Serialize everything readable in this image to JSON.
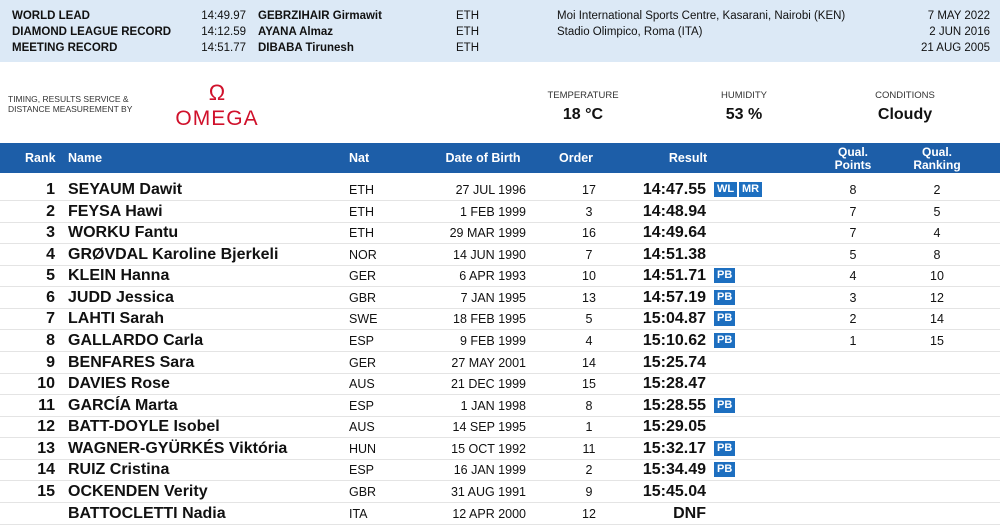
{
  "records": [
    {
      "label": "WORLD LEAD",
      "time": "14:49.97",
      "name": "GEBRZIHAIR Girmawit",
      "nat": "ETH",
      "venue": "Moi International Sports Centre, Kasarani, Nairobi (KEN)",
      "date": "7 MAY 2022"
    },
    {
      "label": "DIAMOND LEAGUE RECORD",
      "time": "14:12.59",
      "name": "AYANA Almaz",
      "nat": "ETH",
      "venue": "Stadio Olimpico, Roma (ITA)",
      "date": "2 JUN 2016"
    },
    {
      "label": "MEETING RECORD",
      "time": "14:51.77",
      "name": "DIBABA Tirunesh",
      "nat": "ETH",
      "date": "21 AUG 2005"
    }
  ],
  "timing": {
    "credit_lines": [
      "TIMING, RESULTS SERVICE &",
      "DISTANCE MEASUREMENT BY"
    ],
    "logo_symbol": "Ω",
    "logo_text": "OMEGA"
  },
  "weather": [
    {
      "label": "TEMPERATURE",
      "value": "18 °C"
    },
    {
      "label": "HUMIDITY",
      "value": "53 %"
    },
    {
      "label": "CONDITIONS",
      "value": "Cloudy"
    }
  ],
  "table": {
    "headers": {
      "rank": "Rank",
      "name": "Name",
      "nat": "Nat",
      "dob": "Date of Birth",
      "order": "Order",
      "result": "Result",
      "qual_points": [
        "Qual.",
        "Points"
      ],
      "qual_ranking": [
        "Qual.",
        "Ranking"
      ]
    },
    "rows": [
      {
        "rank": "1",
        "name": "SEYAUM Dawit",
        "nat": "ETH",
        "dob": "27 JUL 1996",
        "order": "17",
        "result": "14:47.55",
        "badges": [
          "WL",
          "MR"
        ],
        "qual_points": "8",
        "qual_ranking": "2"
      },
      {
        "rank": "2",
        "name": "FEYSA Hawi",
        "nat": "ETH",
        "dob": "1 FEB 1999",
        "order": "3",
        "result": "14:48.94",
        "qual_points": "7",
        "qual_ranking": "5"
      },
      {
        "rank": "3",
        "name": "WORKU Fantu",
        "nat": "ETH",
        "dob": "29 MAR 1999",
        "order": "16",
        "result": "14:49.64",
        "qual_points": "7",
        "qual_ranking": "4"
      },
      {
        "rank": "4",
        "name": "GRØVDAL Karoline Bjerkeli",
        "nat": "NOR",
        "dob": "14 JUN 1990",
        "order": "7",
        "result": "14:51.38",
        "qual_points": "5",
        "qual_ranking": "8"
      },
      {
        "rank": "5",
        "name": "KLEIN Hanna",
        "nat": "GER",
        "dob": "6 APR 1993",
        "order": "10",
        "result": "14:51.71",
        "badges": [
          "PB"
        ],
        "qual_points": "4",
        "qual_ranking": "10"
      },
      {
        "rank": "6",
        "name": "JUDD Jessica",
        "nat": "GBR",
        "dob": "7 JAN 1995",
        "order": "13",
        "result": "14:57.19",
        "badges": [
          "PB"
        ],
        "qual_points": "3",
        "qual_ranking": "12"
      },
      {
        "rank": "7",
        "name": "LAHTI Sarah",
        "nat": "SWE",
        "dob": "18 FEB 1995",
        "order": "5",
        "result": "15:04.87",
        "badges": [
          "PB"
        ],
        "qual_points": "2",
        "qual_ranking": "14"
      },
      {
        "rank": "8",
        "name": "GALLARDO Carla",
        "nat": "ESP",
        "dob": "9 FEB 1999",
        "order": "4",
        "result": "15:10.62",
        "badges": [
          "PB"
        ],
        "qual_points": "1",
        "qual_ranking": "15"
      },
      {
        "rank": "9",
        "name": "BENFARES Sara",
        "nat": "GER",
        "dob": "27 MAY 2001",
        "order": "14",
        "result": "15:25.74"
      },
      {
        "rank": "10",
        "name": "DAVIES Rose",
        "nat": "AUS",
        "dob": "21 DEC 1999",
        "order": "15",
        "result": "15:28.47"
      },
      {
        "rank": "11",
        "name": "GARCÍA Marta",
        "nat": "ESP",
        "dob": "1 JAN 1998",
        "order": "8",
        "result": "15:28.55",
        "badges": [
          "PB"
        ]
      },
      {
        "rank": "12",
        "name": "BATT-DOYLE Isobel",
        "nat": "AUS",
        "dob": "14 SEP 1995",
        "order": "1",
        "result": "15:29.05"
      },
      {
        "rank": "13",
        "name": "WAGNER-GYÜRKÉS Viktória",
        "nat": "HUN",
        "dob": "15 OCT 1992",
        "order": "11",
        "result": "15:32.17",
        "badges": [
          "PB"
        ]
      },
      {
        "rank": "14",
        "name": "RUIZ Cristina",
        "nat": "ESP",
        "dob": "16 JAN 1999",
        "order": "2",
        "result": "15:34.49",
        "badges": [
          "PB"
        ]
      },
      {
        "rank": "15",
        "name": "OCKENDEN Verity",
        "nat": "GBR",
        "dob": "31 AUG 1991",
        "order": "9",
        "result": "15:45.04"
      },
      {
        "name": "BATTOCLETTI Nadia",
        "nat": "ITA",
        "dob": "12 APR 2000",
        "order": "12",
        "result": "DNF"
      }
    ]
  }
}
